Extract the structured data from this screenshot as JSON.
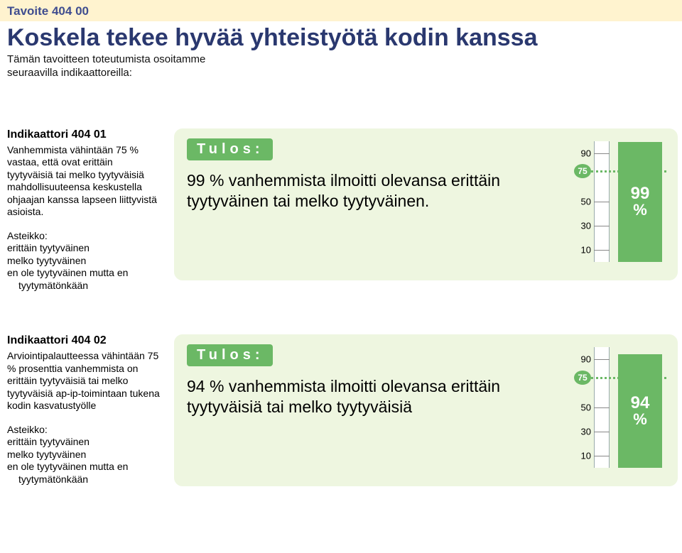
{
  "header": {
    "tavoite": "Tavoite 404 00",
    "title": "Koskela tekee hyvää yhteistyötä kodin kanssa",
    "subtitle": "Tämän tavoitteen toteutumista osoitamme seuraavilla indikaattoreilla:",
    "band_bg": "#fff3cf",
    "tavoite_color": "#3f4d8f",
    "title_color": "#2a386f"
  },
  "result_label": "Tulos:",
  "card_bg": "#eef6e0",
  "accent": "#6bb865",
  "indicators": [
    {
      "heading": "Indikaattori 404 01",
      "body": "Vanhemmista vähintään 75 % vastaa, että ovat erittäin tyytyväisiä tai melko tyytyväisiä mahdollisuuteensa keskustella ohjaajan kanssa lapseen liittyvistä asioista.",
      "scale_label": "Asteikko:",
      "scale_items": [
        "erittäin tyytyväinen",
        "melko tyytyväinen",
        "en ole tyytyväinen mutta en"
      ],
      "scale_indent": "tyytymätönkään",
      "result_text": "99 % vanhemmista ilmoitti olevansa erittäin tyytyväinen tai melko tyytyväinen.",
      "gauge": {
        "min": 0,
        "max": 100,
        "ticks": [
          10,
          30,
          50,
          90
        ],
        "target": 75,
        "value": 99,
        "value_label": "99",
        "pct_label": "%"
      }
    },
    {
      "heading": "Indikaattori 404 02",
      "body": "Arviointipalautteessa vähintään 75 % prosenttia vanhemmista on erittäin tyytyväisiä tai melko tyytyväisiä ap-ip-toimintaan tukena kodin kasvatustyölle",
      "scale_label": "Asteikko:",
      "scale_items": [
        "erittäin tyytyväinen",
        "melko tyytyväinen",
        "en ole tyytyväinen mutta en"
      ],
      "scale_indent": "tyytymätönkään",
      "result_text": "94 % vanhemmista ilmoitti olevansa erittäin tyytyväisiä tai melko tyytyväisiä",
      "gauge": {
        "min": 0,
        "max": 100,
        "ticks": [
          10,
          30,
          50,
          90
        ],
        "target": 75,
        "value": 94,
        "value_label": "94",
        "pct_label": "%"
      }
    }
  ]
}
